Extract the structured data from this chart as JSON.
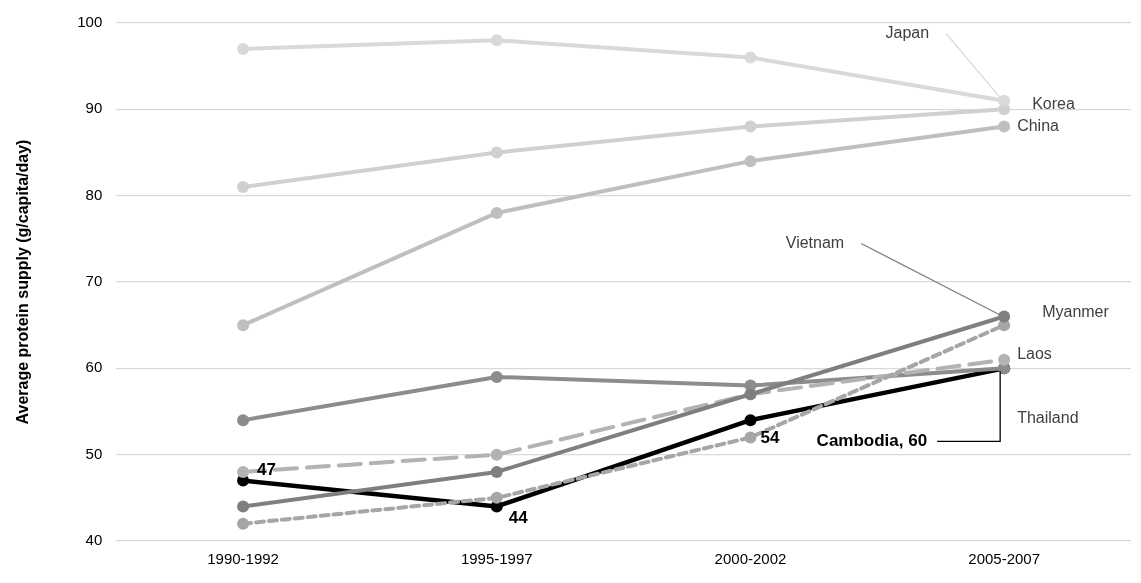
{
  "chart_data": {
    "type": "line",
    "ylabel": "Average protein supply (g/capita/day)",
    "categories": [
      "1990-1992",
      "1995-1997",
      "2000-2002",
      "2005-2007"
    ],
    "series": [
      {
        "name": "Japan",
        "color": "#d9d9d9",
        "values": [
          97,
          98,
          96,
          91
        ]
      },
      {
        "name": "Korea",
        "color": "#d0d0d0",
        "values": [
          81,
          85,
          88,
          90
        ]
      },
      {
        "name": "China",
        "color": "#bfbfbf",
        "values": [
          65,
          78,
          84,
          88
        ]
      },
      {
        "name": "Vietnam",
        "color": "#7f7f7f",
        "values": [
          44,
          48,
          57,
          66
        ]
      },
      {
        "name": "Myanmer",
        "color": "#a6a6a6",
        "line_style": "dashed",
        "values": [
          42,
          45,
          52,
          65
        ]
      },
      {
        "name": "Laos",
        "color": "#b3b3b3",
        "line_style": "longdash",
        "values": [
          48,
          50,
          57,
          61
        ]
      },
      {
        "name": "Thailand",
        "color": "#8c8c8c",
        "values": [
          54,
          59,
          58,
          60
        ]
      },
      {
        "name": "Cambodia, 60",
        "color": "#000000",
        "values": [
          47,
          44,
          54,
          60
        ],
        "value_labels": [
          "47",
          "44",
          "54",
          null
        ]
      }
    ],
    "ylim": [
      40,
      100
    ],
    "yticks": [
      40,
      50,
      60,
      70,
      80,
      90,
      100
    ],
    "grid": "y",
    "marker": "circle",
    "legend": false
  }
}
